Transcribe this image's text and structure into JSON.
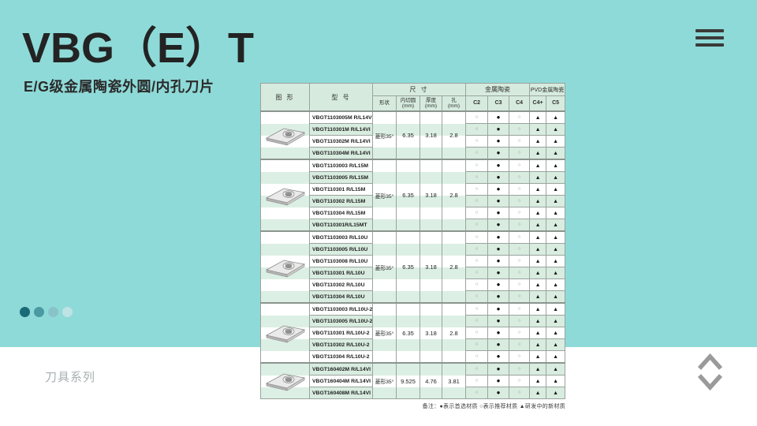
{
  "page": {
    "title": "VBG（E）T",
    "subtitle": "E/G级金属陶瓷外圆/内孔刀片",
    "series_label": "刀具系列",
    "background_color": "#8edad8",
    "dot_colors": [
      "#1a6a78",
      "#4b9aa3",
      "#88c3c9",
      "#bfe3e4"
    ]
  },
  "icons": {
    "menu": "menu-icon",
    "up": "chevron-up-icon",
    "down": "chevron-down-icon"
  },
  "table": {
    "header": {
      "figure": "图  形",
      "model": "型  号",
      "size_group": "尺  寸",
      "cermet_group": "金属陶瓷",
      "pvd_group": "PVD金属陶瓷",
      "shape": "形状",
      "inscribed_circle": "内切圆\n(mm)",
      "thickness": "厚度\n(mm)",
      "hole": "孔\n(mm)",
      "grades": [
        "C2",
        "C3",
        "C4",
        "C4+",
        "C5"
      ]
    },
    "marks": [
      "○",
      "●",
      "○",
      "▲",
      "▲"
    ],
    "groups": [
      {
        "shape": "菱形35°",
        "ic": "6.35",
        "thickness": "3.18",
        "hole": "2.8",
        "models": [
          "VBGT1103005M R/L14VI",
          "VBGT110301M R/L14VI",
          "VBGT110302M R/L14VI",
          "VBGT110304M R/L14VI"
        ]
      },
      {
        "shape": "菱形35°",
        "ic": "6.35",
        "thickness": "3.18",
        "hole": "2.8",
        "models": [
          "VBGT1103003 R/L15M",
          "VBGT1103005 R/L15M",
          "VBGT110301 R/L15M",
          "VBGT110302 R/L15M",
          "VBGT110304 R/L15M",
          "VBGT110301R/L15MT"
        ]
      },
      {
        "shape": "菱形35°",
        "ic": "6.35",
        "thickness": "3.18",
        "hole": "2.8",
        "models": [
          "VBGT1103003 R/L10U",
          "VBGT1103005 R/L10U",
          "VBGT1103008 R/L10U",
          "VBGT110301 R/L10U",
          "VBGT110302 R/L10U",
          "VBGT110304 R/L10U"
        ]
      },
      {
        "shape": "菱形35°",
        "ic": "6.35",
        "thickness": "3.18",
        "hole": "2.8",
        "models": [
          "VBGT1103003 R/L10U-2",
          "VBGT1103005 R/L10U-2",
          "VBGT110301 R/L10U-2",
          "VBGT110302 R/L10U-2",
          "VBGT110304 R/L10U-2"
        ]
      },
      {
        "shape": "菱形35°",
        "ic": "9.525",
        "thickness": "4.76",
        "hole": "3.81",
        "models": [
          "VBGT160402M R/L14VI",
          "VBGT160404M R/L14VI",
          "VBGT160408M R/L14VI"
        ]
      }
    ],
    "note": "备注：●表示首选材质  ○表示推荐材质  ▲研发中的新材质"
  }
}
